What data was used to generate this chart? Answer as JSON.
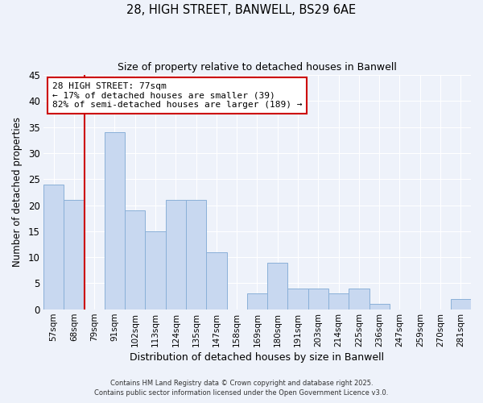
{
  "title_line1": "28, HIGH STREET, BANWELL, BS29 6AE",
  "title_line2": "Size of property relative to detached houses in Banwell",
  "xlabel": "Distribution of detached houses by size in Banwell",
  "ylabel": "Number of detached properties",
  "bins": [
    "57sqm",
    "68sqm",
    "79sqm",
    "91sqm",
    "102sqm",
    "113sqm",
    "124sqm",
    "135sqm",
    "147sqm",
    "158sqm",
    "169sqm",
    "180sqm",
    "191sqm",
    "203sqm",
    "214sqm",
    "225sqm",
    "236sqm",
    "247sqm",
    "259sqm",
    "270sqm",
    "281sqm"
  ],
  "values": [
    24,
    21,
    0,
    34,
    19,
    15,
    21,
    21,
    11,
    0,
    3,
    9,
    4,
    4,
    3,
    4,
    1,
    0,
    0,
    0,
    2
  ],
  "bar_color": "#c8d8f0",
  "bar_edge_color": "#8ab0d8",
  "vline_color": "#cc0000",
  "vline_x_index": 2,
  "annotation_line1": "28 HIGH STREET: 77sqm",
  "annotation_line2": "← 17% of detached houses are smaller (39)",
  "annotation_line3": "82% of semi-detached houses are larger (189) →",
  "annotation_box_color": "#ffffff",
  "annotation_box_edge": "#cc0000",
  "ylim": [
    0,
    45
  ],
  "yticks": [
    0,
    5,
    10,
    15,
    20,
    25,
    30,
    35,
    40,
    45
  ],
  "background_color": "#eef2fa",
  "grid_color": "#ffffff",
  "footer_line1": "Contains HM Land Registry data © Crown copyright and database right 2025.",
  "footer_line2": "Contains public sector information licensed under the Open Government Licence v3.0."
}
